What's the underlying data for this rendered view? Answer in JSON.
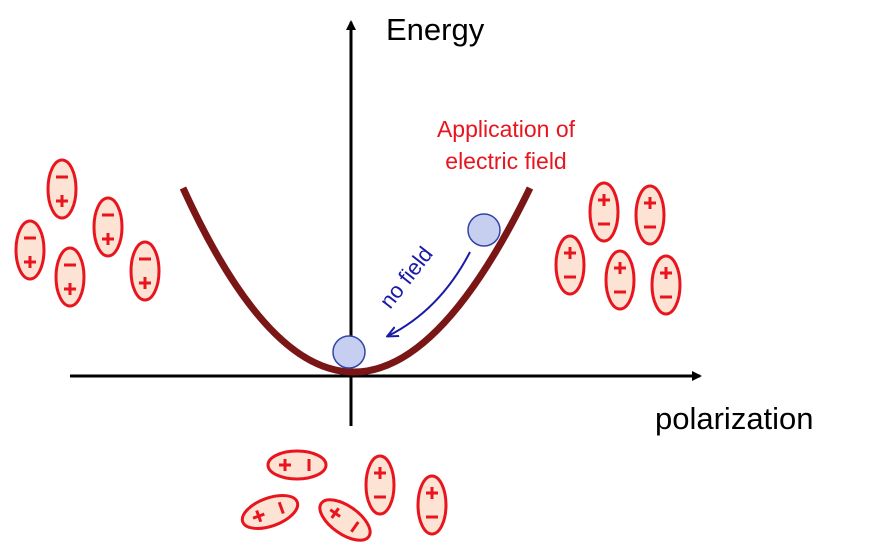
{
  "axes": {
    "y_label": "Energy",
    "x_label": "polarization"
  },
  "annotations": {
    "field_application": [
      "Application of",
      "electric field"
    ],
    "no_field": "no field"
  }
}
